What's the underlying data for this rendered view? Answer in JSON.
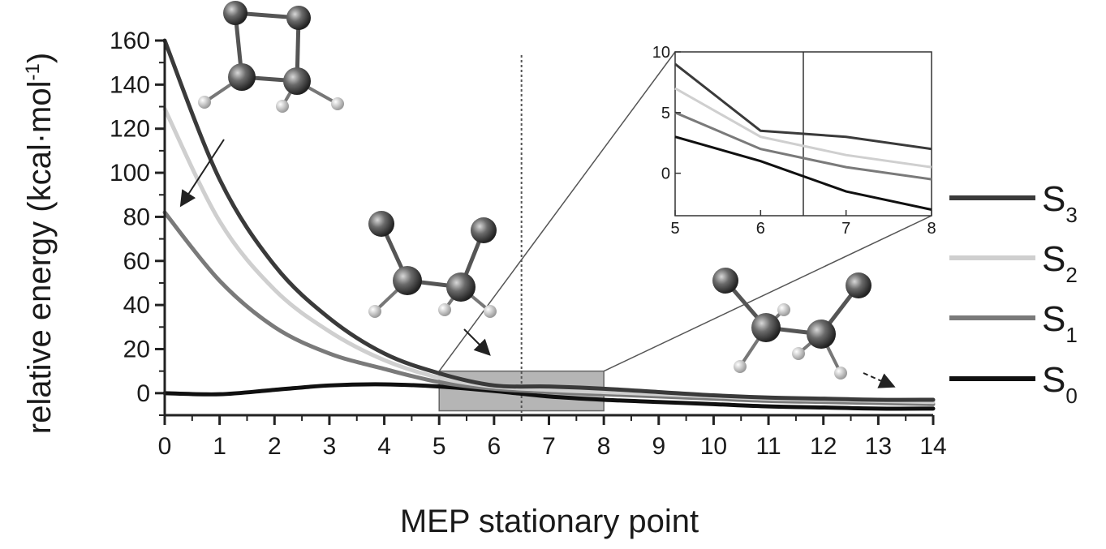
{
  "chart_data": {
    "type": "line",
    "xlabel": "MEP stationary point",
    "ylabel": "relative energy (kcal·mol",
    "ylabel_sup": "-1",
    "ylabel_close": ")",
    "xlim": [
      0,
      14
    ],
    "ylim": [
      -10,
      160
    ],
    "x_ticks": [
      0,
      1,
      2,
      3,
      4,
      5,
      6,
      7,
      8,
      9,
      10,
      11,
      12,
      13,
      14
    ],
    "y_ticks": [
      0,
      20,
      40,
      60,
      80,
      100,
      120,
      140,
      160
    ],
    "x_tick_labels": [
      "0",
      "1",
      "2",
      "3",
      "4",
      "5",
      "6",
      "7",
      "8",
      "9",
      "10",
      "11",
      "12",
      "13",
      "14"
    ],
    "y_tick_labels": [
      "0",
      "20",
      "40",
      "60",
      "80",
      "100",
      "120",
      "140",
      "160"
    ],
    "x": [
      0,
      1,
      2,
      3,
      4,
      5,
      6,
      7,
      8,
      9,
      10,
      11,
      12,
      13,
      14
    ],
    "vline_x": 6.5,
    "zoom_box": {
      "x": [
        5,
        8
      ],
      "y": [
        -8,
        10
      ]
    },
    "series": [
      {
        "name": "S",
        "sub": "3",
        "color": "#3a3a3a",
        "values": [
          160,
          97,
          58,
          34,
          18,
          9,
          3.5,
          3.0,
          2.0,
          0.5,
          -1,
          -2,
          -2.5,
          -3,
          -3
        ]
      },
      {
        "name": "S",
        "sub": "2",
        "color": "#cfcfcf",
        "values": [
          129,
          78,
          47,
          28,
          15,
          7,
          3.0,
          1.5,
          0.5,
          -0.5,
          -1.5,
          -2.5,
          -3,
          -3.5,
          -4
        ]
      },
      {
        "name": "S",
        "sub": "1",
        "color": "#7a7a7a",
        "values": [
          82,
          51,
          30,
          18,
          11,
          5,
          2.0,
          0.5,
          -0.5,
          -1.5,
          -2.5,
          -3.5,
          -4,
          -4.5,
          -5
        ]
      },
      {
        "name": "S",
        "sub": "0",
        "color": "#101010",
        "values": [
          0,
          -0.5,
          1.5,
          3.5,
          4,
          3,
          1.0,
          -1.5,
          -3.0,
          -4,
          -5,
          -6,
          -6.5,
          -7,
          -7
        ]
      }
    ],
    "inset": {
      "xlim": [
        5,
        8
      ],
      "ylim": [
        -3.5,
        10
      ],
      "x_ticks": [
        5,
        6,
        7,
        8
      ],
      "x_tick_labels": [
        "5",
        "6",
        "7",
        "8"
      ],
      "y_ticks": [
        0,
        5,
        10
      ],
      "y_tick_labels": [
        "0",
        "5",
        "10"
      ],
      "vline_x": 6.5
    },
    "legend_position": "right"
  }
}
